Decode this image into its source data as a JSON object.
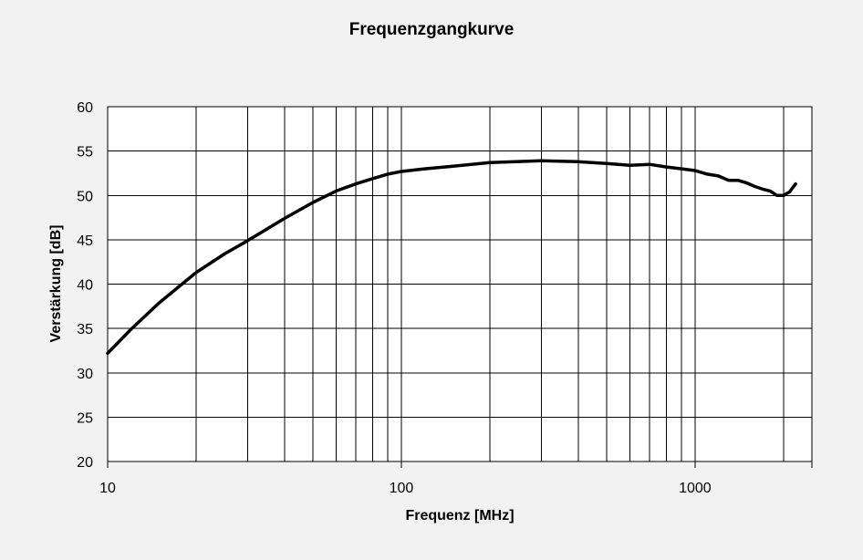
{
  "chart_data": {
    "type": "line",
    "title": "Frequenzgangkurve",
    "xlabel": "Frequenz  [MHz]",
    "ylabel": "Verstärkung [dB]",
    "x_scale": "log",
    "xlim": [
      10,
      2500
    ],
    "ylim": [
      20,
      60
    ],
    "grid": true,
    "x_tick_labels": [
      "10",
      "100",
      "1000"
    ],
    "y_tick_labels": [
      "20",
      "25",
      "30",
      "35",
      "40",
      "45",
      "50",
      "55",
      "60"
    ],
    "series": [
      {
        "color": "#000000",
        "x": [
          10,
          12,
          15,
          20,
          25,
          30,
          40,
          50,
          60,
          70,
          80,
          90,
          100,
          120,
          150,
          200,
          300,
          400,
          500,
          600,
          700,
          800,
          900,
          1000,
          1100,
          1200,
          1300,
          1400,
          1500,
          1600,
          1700,
          1800,
          1900,
          2000,
          2100,
          2200
        ],
        "y": [
          32.2,
          34.9,
          37.9,
          41.3,
          43.4,
          44.9,
          47.4,
          49.2,
          50.5,
          51.3,
          51.9,
          52.4,
          52.7,
          53.0,
          53.3,
          53.7,
          53.9,
          53.8,
          53.6,
          53.4,
          53.5,
          53.2,
          53.0,
          52.8,
          52.4,
          52.2,
          51.7,
          51.7,
          51.4,
          51.0,
          50.7,
          50.5,
          50.0,
          50.0,
          50.4,
          51.3
        ]
      }
    ]
  }
}
